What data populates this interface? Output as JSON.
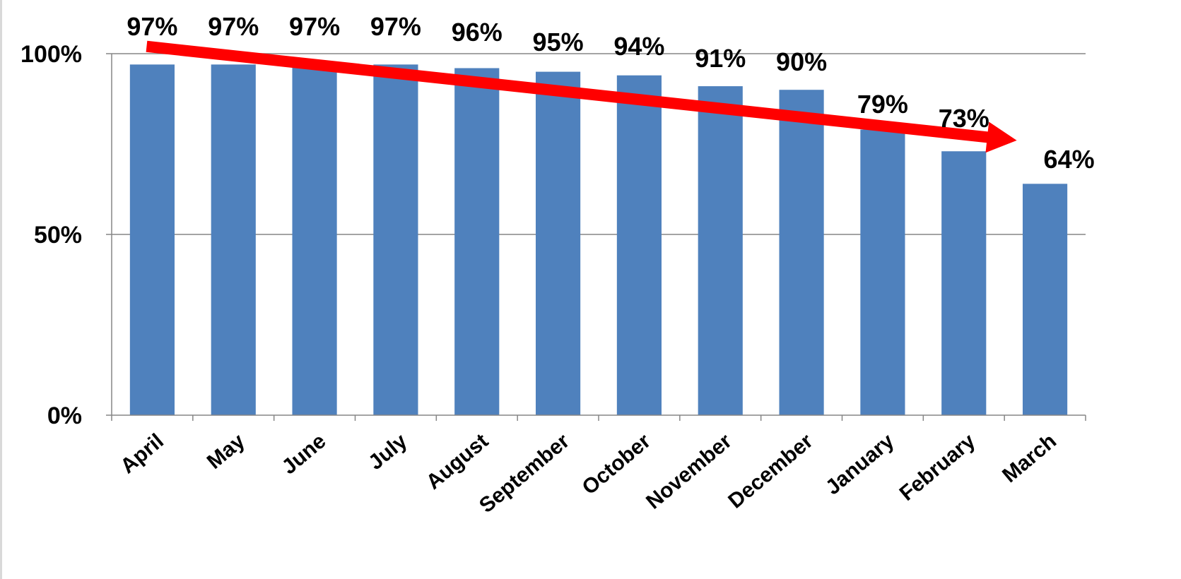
{
  "chart_data": {
    "type": "bar",
    "categories": [
      "April",
      "May",
      "June",
      "July",
      "August",
      "September",
      "October",
      "November",
      "December",
      "January",
      "February",
      "March"
    ],
    "series": [
      {
        "values": [
          97,
          97,
          97,
          97,
          96,
          95,
          94,
          91,
          90,
          79,
          73,
          64
        ]
      }
    ],
    "data_labels": [
      "97%",
      "97%",
      "97%",
      "97%",
      "96%",
      "95%",
      "94%",
      "91%",
      "90%",
      "79%",
      "73%",
      "64%"
    ],
    "title": "",
    "xlabel": "",
    "ylabel": "",
    "ylim": [
      0,
      100
    ],
    "yticks": [
      {
        "value": 0,
        "label": "0%"
      },
      {
        "value": 50,
        "label": "50%"
      },
      {
        "value": 100,
        "label": "100%"
      }
    ],
    "grid": true,
    "legend": "none",
    "trend_arrow": {
      "from_category": "April",
      "from_value": 102,
      "to_category": "March",
      "to_value": 76,
      "color": "#ff0000"
    },
    "colors": {
      "bar": "#4f81bd",
      "grid": "#868686",
      "axis": "#868686",
      "arrow": "#ff0000"
    }
  }
}
